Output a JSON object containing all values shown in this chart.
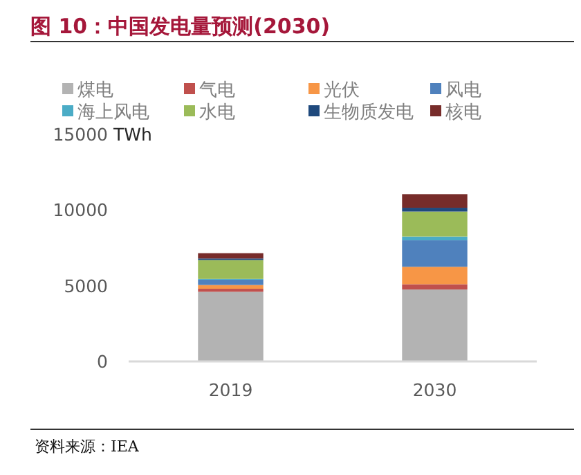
{
  "chart_data": {
    "type": "bar",
    "stacked": true,
    "title": "图 10：中国发电量预测(2030)",
    "annotations": [
      "资料来源：IEA"
    ],
    "categories": [
      "2019",
      "2030"
    ],
    "ylim": [
      0,
      15000
    ],
    "yticks": [
      0,
      5000,
      10000,
      15000
    ],
    "ylabel": "TWh",
    "legend": "top",
    "grid": false,
    "series": [
      {
        "name": "煤电",
        "color": "#b3b3b3",
        "values": [
          4600,
          4750
        ]
      },
      {
        "name": "气电",
        "color": "#c0504d",
        "values": [
          200,
          350
        ]
      },
      {
        "name": "光伏",
        "color": "#f79646",
        "values": [
          250,
          1150
        ]
      },
      {
        "name": "风电",
        "color": "#4f81bd",
        "values": [
          350,
          1750
        ]
      },
      {
        "name": "海上风电",
        "color": "#4bacc6",
        "values": [
          50,
          250
        ]
      },
      {
        "name": "水电",
        "color": "#9bbb59",
        "values": [
          1250,
          1650
        ]
      },
      {
        "name": "生物质发电",
        "color": "#1f497d",
        "values": [
          100,
          250
        ]
      },
      {
        "name": "核电",
        "color": "#772c2a",
        "values": [
          350,
          900
        ]
      }
    ]
  }
}
